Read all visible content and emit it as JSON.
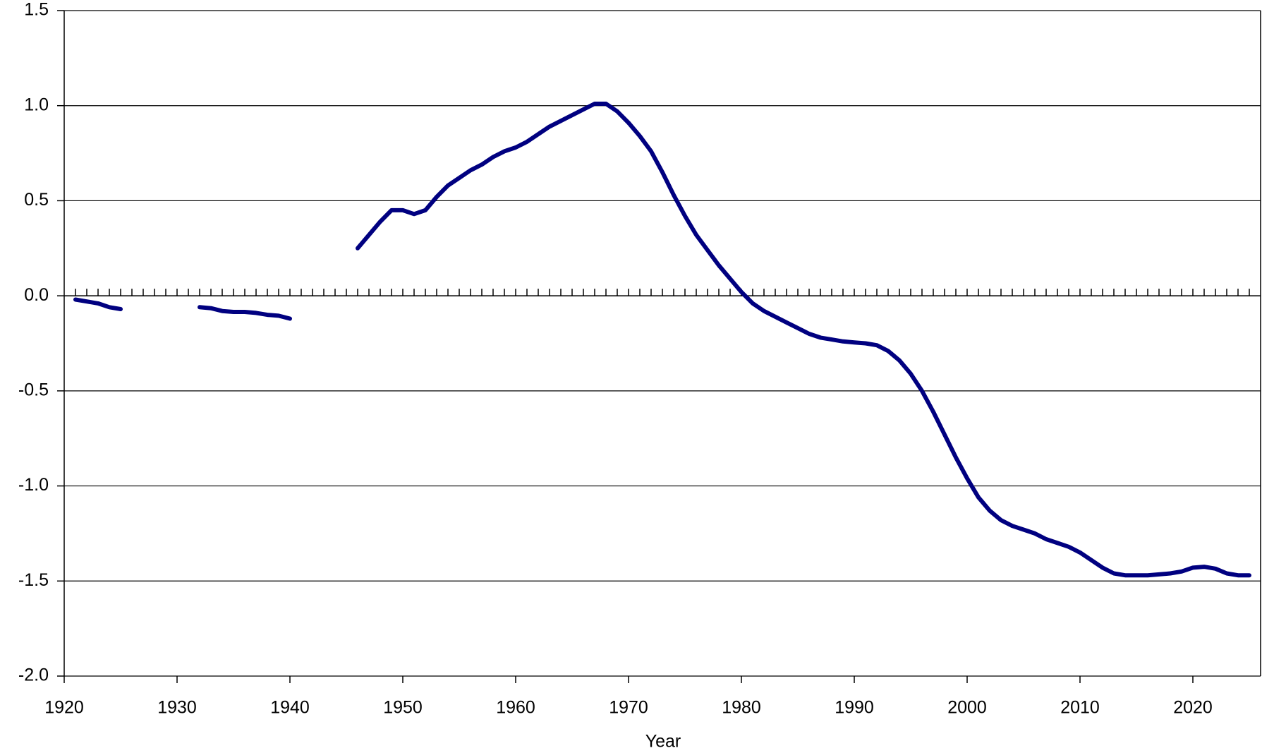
{
  "chart_data": {
    "type": "line",
    "x_label": "Year",
    "x": [
      1921,
      1922,
      1923,
      1924,
      1925,
      1926,
      1927,
      1928,
      1929,
      1930,
      1931,
      1932,
      1933,
      1934,
      1935,
      1936,
      1937,
      1938,
      1939,
      1940,
      1941,
      1942,
      1943,
      1944,
      1945,
      1946,
      1947,
      1948,
      1949,
      1950,
      1951,
      1952,
      1953,
      1954,
      1955,
      1956,
      1957,
      1958,
      1959,
      1960,
      1961,
      1962,
      1963,
      1964,
      1965,
      1966,
      1967,
      1968,
      1969,
      1970,
      1971,
      1972,
      1973,
      1974,
      1975,
      1976,
      1977,
      1978,
      1979,
      1980,
      1981,
      1982,
      1983,
      1984,
      1985,
      1986,
      1987,
      1988,
      1989,
      1990,
      1991,
      1992,
      1993,
      1994,
      1995,
      1996,
      1997,
      1998,
      1999,
      2000,
      2001,
      2002,
      2003,
      2004,
      2005,
      2006,
      2007,
      2008,
      2009,
      2010,
      2011,
      2012,
      2013,
      2014,
      2015,
      2016,
      2017,
      2018,
      2019,
      2020,
      2021,
      2022,
      2023,
      2024,
      2025
    ],
    "series": [
      {
        "color": "#000080",
        "values": [
          -0.02,
          -0.03,
          -0.04,
          -0.06,
          -0.07,
          null,
          null,
          null,
          null,
          null,
          null,
          -0.06,
          -0.065,
          -0.08,
          -0.085,
          -0.085,
          -0.09,
          -0.1,
          -0.105,
          -0.12,
          null,
          null,
          null,
          null,
          null,
          0.25,
          0.32,
          0.39,
          0.45,
          0.45,
          0.43,
          0.45,
          0.52,
          0.58,
          0.62,
          0.66,
          0.69,
          0.73,
          0.76,
          0.78,
          0.81,
          0.85,
          0.89,
          0.92,
          0.95,
          0.98,
          1.01,
          1.01,
          0.97,
          0.91,
          0.84,
          0.76,
          0.65,
          0.53,
          0.42,
          0.32,
          0.24,
          0.16,
          0.09,
          0.02,
          -0.04,
          -0.08,
          -0.11,
          -0.14,
          -0.17,
          -0.2,
          -0.22,
          -0.23,
          -0.24,
          -0.245,
          -0.25,
          -0.26,
          -0.29,
          -0.34,
          -0.41,
          -0.5,
          -0.61,
          -0.73,
          -0.85,
          -0.96,
          -1.06,
          -1.13,
          -1.18,
          -1.21,
          -1.23,
          -1.25,
          -1.28,
          -1.3,
          -1.32,
          -1.35,
          -1.39,
          -1.43,
          -1.46,
          -1.47,
          -1.47,
          -1.47,
          -1.465,
          -1.46,
          -1.45,
          -1.43,
          -1.425,
          -1.435,
          -1.46,
          -1.47,
          -1.47
        ]
      }
    ],
    "xlim": [
      1920,
      2026
    ],
    "xticks": [
      1920,
      1930,
      1940,
      1950,
      1960,
      1970,
      1980,
      1990,
      2000,
      2010,
      2020
    ],
    "ylim": [
      -2.0,
      1.5
    ],
    "yticks": [
      {
        "value": 1.5,
        "label": "1.5"
      },
      {
        "value": 1.0,
        "label": "1.0"
      },
      {
        "value": 0.5,
        "label": "0.5"
      },
      {
        "value": 0,
        "label": "0.0"
      },
      {
        "value": -0.5,
        "label": "-0.5"
      },
      {
        "value": -1.0,
        "label": "-1.0"
      },
      {
        "value": -1.5,
        "label": "-1.5"
      },
      {
        "value": -2.0,
        "label": "-2.0"
      }
    ],
    "grid": true
  }
}
